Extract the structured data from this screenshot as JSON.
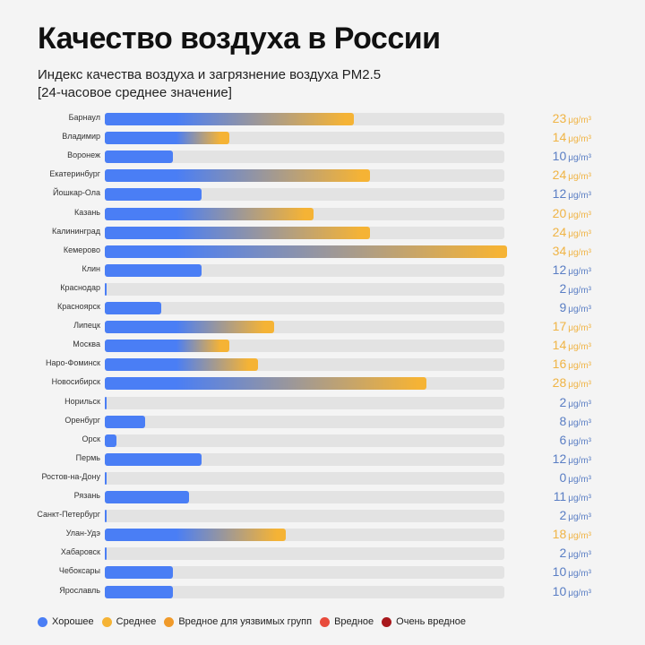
{
  "header": {
    "title": "Качество воздуха в России",
    "subtitle_line1": "Индекс качества воздуха и загрязнение воздуха PM2.5",
    "subtitle_line2": "[24-часовое среднее значение]"
  },
  "colors": {
    "good": "#4a7ef5",
    "moderate": "#f5b335",
    "usg": "#f09a2a",
    "unhealthy": "#e84b3c",
    "very_unhealthy": "#a8181c",
    "track": "#e3e3e3",
    "good_text": "#5a7ec4",
    "moderate_text": "#f0b445"
  },
  "chart_data": {
    "type": "bar",
    "orientation": "horizontal",
    "title": "Качество воздуха в России",
    "subtitle": "Индекс качества воздуха и загрязнение воздуха PM2.5 [24-часовое среднее значение]",
    "unit": "μg/m³",
    "categories": [
      "Барнаул",
      "Владимир",
      "Воронеж",
      "Екатеринбург",
      "Йошкар-Ола",
      "Казань",
      "Калининград",
      "Кемерово",
      "Клин",
      "Краснодар",
      "Красноярск",
      "Липецк",
      "Москва",
      "Наро-Фоминск",
      "Новосибирск",
      "Норильск",
      "Оренбург",
      "Орск",
      "Пермь",
      "Ростов-на-Дону",
      "Рязань",
      "Санкт-Петербург",
      "Улан-Удэ",
      "Хабаровск",
      "Чебоксары",
      "Ярославль"
    ],
    "values": [
      23,
      14,
      10,
      24,
      12,
      20,
      24,
      34,
      12,
      2,
      9,
      17,
      14,
      16,
      28,
      2,
      8,
      6,
      12,
      0,
      11,
      2,
      18,
      2,
      10,
      10
    ],
    "bar_fill_fraction": [
      0.62,
      0.31,
      0.17,
      0.66,
      0.24,
      0.52,
      0.66,
      1.0,
      0.24,
      0.004,
      0.14,
      0.42,
      0.31,
      0.38,
      0.8,
      0.004,
      0.1,
      0.03,
      0.24,
      0.004,
      0.21,
      0.004,
      0.45,
      0.004,
      0.17,
      0.17
    ],
    "category_level": [
      "moderate",
      "moderate",
      "good",
      "moderate",
      "good",
      "moderate",
      "moderate",
      "moderate",
      "good",
      "good",
      "good",
      "moderate",
      "moderate",
      "moderate",
      "moderate",
      "good",
      "good",
      "good",
      "good",
      "good",
      "good",
      "good",
      "moderate",
      "good",
      "good",
      "good"
    ],
    "legend": [
      {
        "key": "good",
        "label": "Хорошее"
      },
      {
        "key": "moderate",
        "label": "Среднее"
      },
      {
        "key": "usg",
        "label": "Вредное для уязвимых групп"
      },
      {
        "key": "unhealthy",
        "label": "Вредное"
      },
      {
        "key": "very_unhealthy",
        "label": "Очень вредное"
      }
    ],
    "legend_position": "bottom-left",
    "grid": false
  }
}
